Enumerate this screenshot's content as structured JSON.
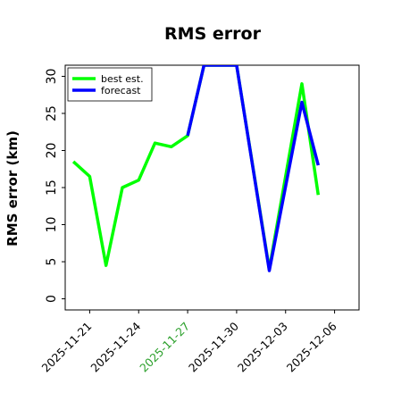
{
  "chart_data": {
    "type": "line",
    "title": "RMS error",
    "xlabel": "",
    "ylabel": "RMS error (km)",
    "ylim": [
      -1.5,
      31.5
    ],
    "yticks": [
      0,
      5,
      10,
      15,
      20,
      25,
      30
    ],
    "x_range": [
      "2025-11-19T12:00",
      "2025-12-07T12:00"
    ],
    "xticks": [
      {
        "label": "2025-11-21",
        "color": "#000000"
      },
      {
        "label": "2025-11-24",
        "color": "#000000"
      },
      {
        "label": "2025-11-27",
        "color": "#2ca02c"
      },
      {
        "label": "2025-11-30",
        "color": "#000000"
      },
      {
        "label": "2025-12-03",
        "color": "#000000"
      },
      {
        "label": "2025-12-06",
        "color": "#000000"
      }
    ],
    "grid": false,
    "legend_position": "top-left",
    "series": [
      {
        "name": "best est.",
        "color": "#00ff00",
        "points": [
          [
            "2025-11-20",
            18.5
          ],
          [
            "2025-11-21",
            16.5
          ],
          [
            "2025-11-22",
            4.5
          ],
          [
            "2025-11-23",
            15.0
          ],
          [
            "2025-11-24",
            16.0
          ],
          [
            "2025-11-25",
            21.0
          ],
          [
            "2025-11-26",
            20.5
          ],
          [
            "2025-11-27",
            22.0
          ],
          [
            "2025-11-28",
            31.5
          ],
          [
            "2025-11-30",
            31.5
          ],
          [
            "2025-12-02",
            4.0
          ],
          [
            "2025-12-04",
            29.0
          ],
          [
            "2025-12-05",
            14.0
          ]
        ]
      },
      {
        "name": "forecast",
        "color": "#0000ff",
        "points": [
          [
            "2025-11-27",
            22.0
          ],
          [
            "2025-11-28",
            31.5
          ],
          [
            "2025-11-30",
            31.5
          ],
          [
            "2025-12-02",
            3.8
          ],
          [
            "2025-12-04",
            26.5
          ],
          [
            "2025-12-05",
            18.0
          ]
        ]
      }
    ]
  }
}
